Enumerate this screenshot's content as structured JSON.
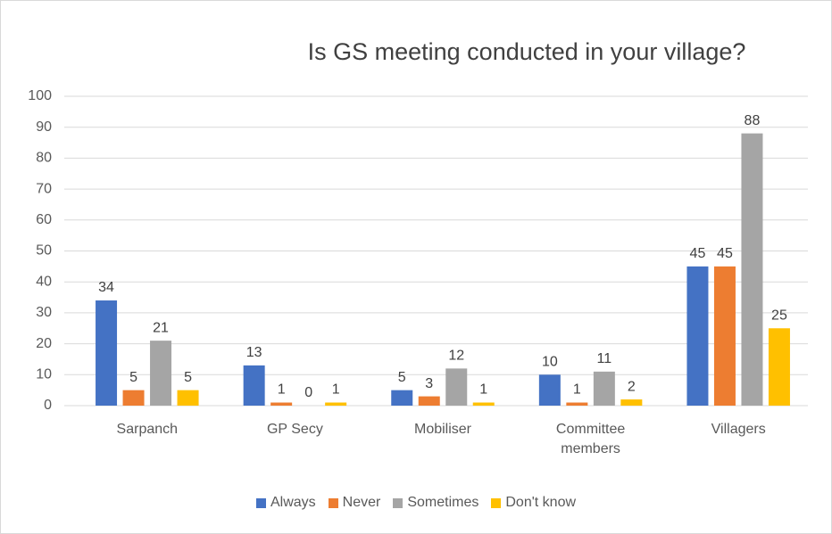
{
  "chart_data": {
    "type": "bar",
    "title": "Is GS meeting conducted in your village?",
    "categories": [
      "Sarpanch",
      "GP Secy",
      "Mobiliser",
      "Committee members",
      "Villagers"
    ],
    "series": [
      {
        "name": "Always",
        "color": "#4472c4",
        "values": [
          34,
          13,
          5,
          10,
          45
        ]
      },
      {
        "name": "Never",
        "color": "#ed7d31",
        "values": [
          5,
          1,
          3,
          1,
          45
        ]
      },
      {
        "name": "Sometimes",
        "color": "#a5a5a5",
        "values": [
          21,
          0,
          12,
          11,
          88
        ]
      },
      {
        "name": "Don't know",
        "color": "#ffc000",
        "values": [
          5,
          1,
          1,
          2,
          25
        ]
      }
    ],
    "ylim": [
      0,
      100
    ],
    "yticks": [
      0,
      10,
      20,
      30,
      40,
      50,
      60,
      70,
      80,
      90,
      100
    ],
    "grid": true,
    "legend": "bottom"
  }
}
